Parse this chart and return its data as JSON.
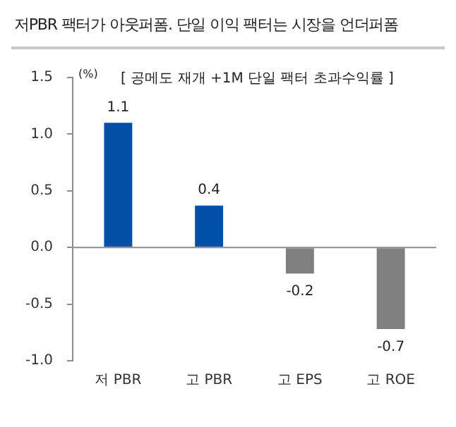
{
  "chart_data": {
    "type": "bar",
    "title": "저PBR 팩터가 아웃퍼폼. 단일 이익 팩터는 시장을 언더퍼폼",
    "subtitle": "[ 공메도 재개 +1M 단일 팩터 초과수익률 ]",
    "ylabel": "(%)",
    "categories": [
      "저 PBR",
      "고 PBR",
      "고 EPS",
      "고 ROE"
    ],
    "values": [
      1.1,
      0.37,
      -0.23,
      -0.72
    ],
    "colors": [
      "#0050a8",
      "#0050a8",
      "#808080",
      "#808080"
    ],
    "value_labels": [
      "1.1",
      "0.4",
      "-0.2",
      "-0.7"
    ],
    "ylim": [
      -1.0,
      1.5
    ],
    "yticks": [
      {
        "value": -1,
        "label": "-1.0"
      },
      {
        "value": -0.5,
        "label": "-0.5"
      },
      {
        "value": 0,
        "label": "0.0"
      },
      {
        "value": 0.5,
        "label": "0.5"
      },
      {
        "value": 1,
        "label": "1.0"
      },
      {
        "value": 1.5,
        "label": "1.5"
      }
    ],
    "legend": false
  }
}
